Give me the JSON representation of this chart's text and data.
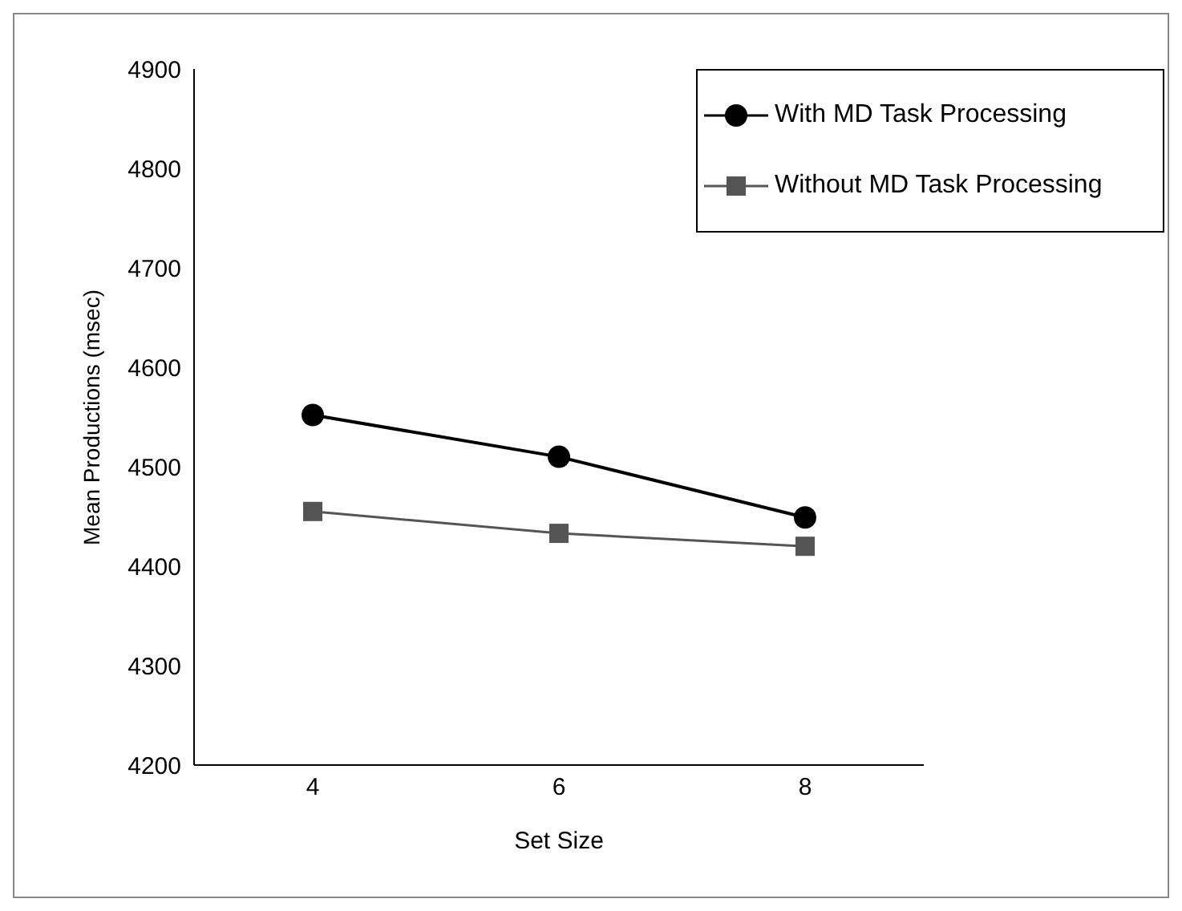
{
  "chart_data": {
    "type": "line",
    "xlabel": "Set Size",
    "ylabel": "Mean Productions (msec)",
    "categories": [
      "4",
      "6",
      "8"
    ],
    "series": [
      {
        "name": "With MD Task Processing",
        "color": "#000000",
        "marker": "circle",
        "values": [
          4552,
          4510,
          4449
        ]
      },
      {
        "name": "Without MD Task Processing",
        "color": "#555555",
        "marker": "square",
        "values": [
          4455,
          4433,
          4420
        ]
      }
    ],
    "ylim": [
      4200,
      4900
    ],
    "yticks": [
      4200,
      4300,
      4400,
      4500,
      4600,
      4700,
      4800,
      4900
    ],
    "grid": false,
    "legend": "top right",
    "line_style": "solid"
  }
}
